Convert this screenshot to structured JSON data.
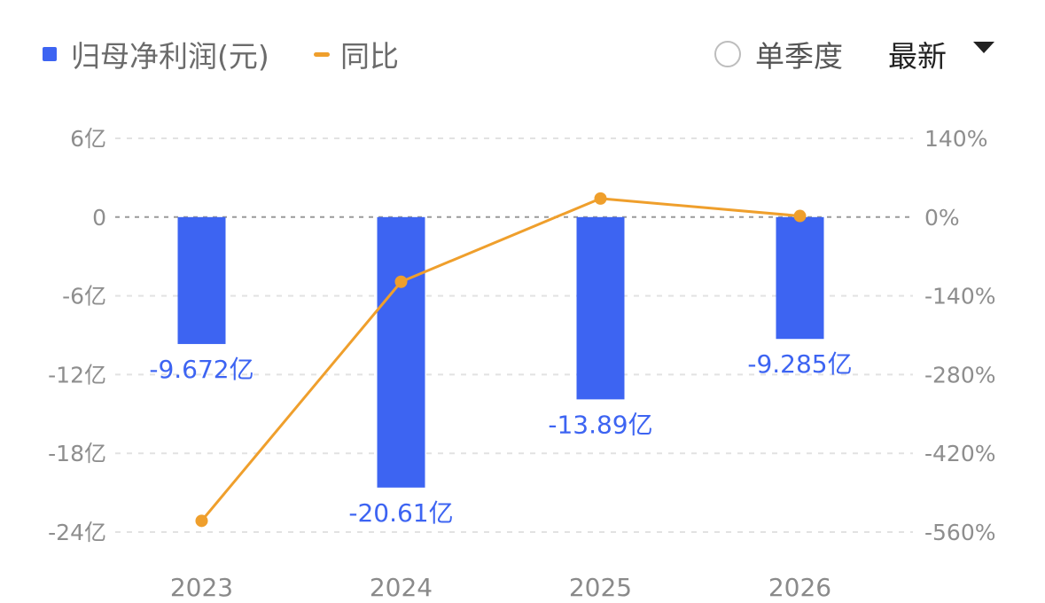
{
  "legend": {
    "profit_label": "归母净利润(元)",
    "yoy_label": "同比",
    "quarter_toggle_label": "单季度",
    "latest_select_label": "最新"
  },
  "colors": {
    "bar": "#3d64f2",
    "line": "#ef9f2c",
    "grid": "#e2e2e2",
    "zero_line": "#9a9a9a"
  },
  "chart_data": {
    "type": "bar",
    "categories": [
      "2023",
      "2024",
      "2025",
      "2026"
    ],
    "series": [
      {
        "type": "bar",
        "axis": "left",
        "values": [
          -9.672,
          -20.61,
          -13.89,
          -9.285
        ],
        "labels": [
          "-9.672亿",
          "-20.61亿",
          "-13.89亿",
          "-9.285亿"
        ]
      },
      {
        "type": "line",
        "axis": "right",
        "values": [
          -540,
          -115,
          33,
          2
        ]
      }
    ],
    "ylim_left": [
      -24,
      6
    ],
    "yticks_left": [
      6,
      0,
      -6,
      -12,
      -18,
      -24
    ],
    "ytick_labels_left": [
      "6亿",
      "0",
      "-6亿",
      "-12亿",
      "-18亿",
      "-24亿"
    ],
    "ylim_right": [
      -560,
      140
    ],
    "yticks_right": [
      140,
      0,
      -140,
      -280,
      -420,
      -560
    ],
    "ytick_labels_right": [
      "140%",
      "0%",
      "-140%",
      "-280%",
      "-420%",
      "-560%"
    ],
    "grid": true
  }
}
